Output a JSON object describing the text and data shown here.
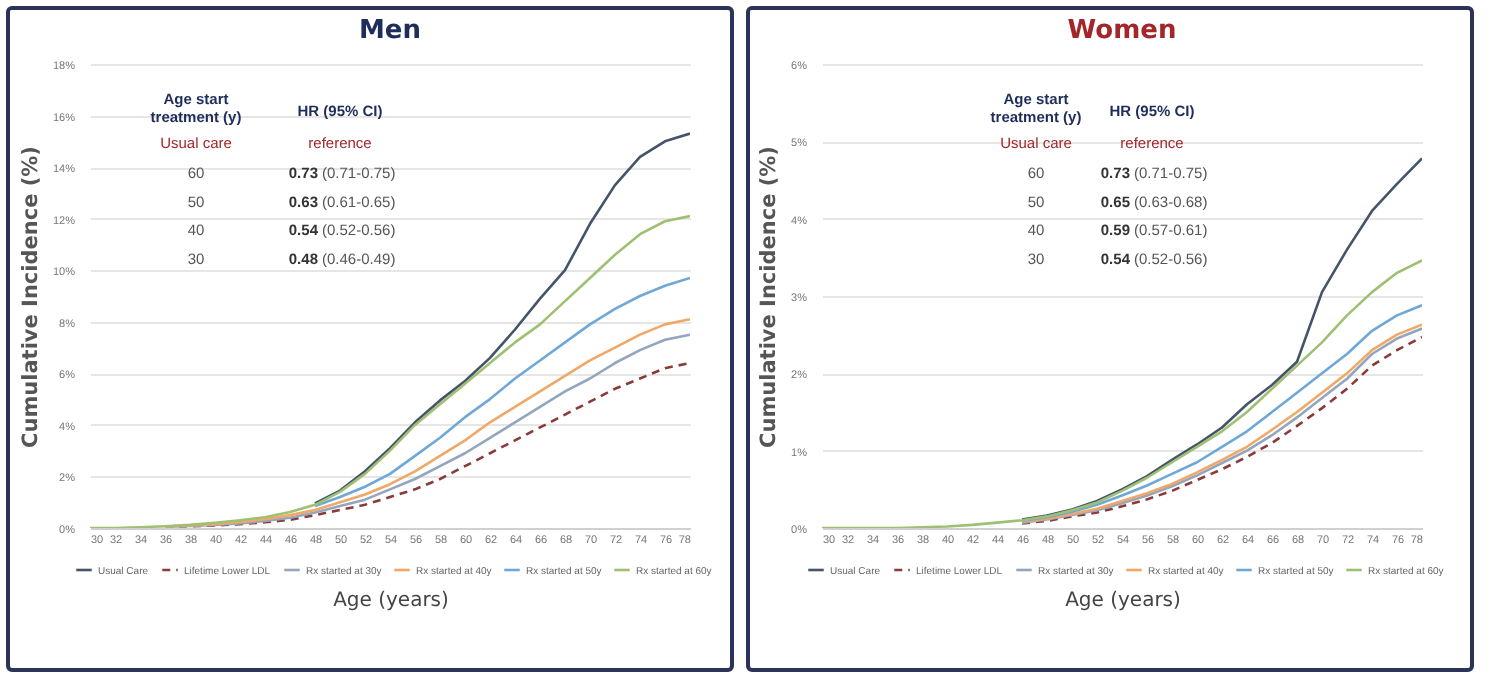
{
  "chart_data": [
    {
      "type": "line",
      "title": "Men",
      "xlabel": "Age (years)",
      "ylabel": "Cumulative Incidence (%)",
      "x": [
        30,
        32,
        34,
        36,
        38,
        40,
        42,
        44,
        46,
        48,
        50,
        52,
        54,
        56,
        58,
        60,
        62,
        64,
        66,
        68,
        70,
        72,
        74,
        76,
        78
      ],
      "series": [
        {
          "name": "Usual Care",
          "color": "#44546a",
          "values": [
            null,
            null,
            null,
            null,
            null,
            null,
            null,
            null,
            null,
            0.95,
            1.45,
            2.2,
            3.1,
            4.1,
            4.95,
            5.7,
            6.6,
            7.7,
            8.9,
            10.0,
            11.8,
            13.3,
            14.4,
            15.0,
            15.3
          ]
        },
        {
          "name": "Lifetime Lower LDL",
          "color": "#8b3a3a",
          "line_style": "dashed",
          "values": [
            null,
            null,
            null,
            0.04,
            0.07,
            0.1,
            0.15,
            0.22,
            0.32,
            0.5,
            0.7,
            0.9,
            1.2,
            1.5,
            1.9,
            2.4,
            2.9,
            3.4,
            3.9,
            4.4,
            4.9,
            5.4,
            5.8,
            6.2,
            6.4
          ]
        },
        {
          "name": "Rx started at 30y",
          "color": "#93a6be",
          "values": [
            null,
            null,
            null,
            0.05,
            0.08,
            0.12,
            0.18,
            0.27,
            0.4,
            0.6,
            0.85,
            1.1,
            1.5,
            1.9,
            2.4,
            2.9,
            3.5,
            4.1,
            4.7,
            5.3,
            5.8,
            6.4,
            6.9,
            7.3,
            7.5
          ]
        },
        {
          "name": "Rx started at 40y",
          "color": "#f0a868",
          "values": [
            null,
            null,
            null,
            0.06,
            0.1,
            0.15,
            0.23,
            0.34,
            0.5,
            0.7,
            1.0,
            1.3,
            1.7,
            2.2,
            2.8,
            3.4,
            4.1,
            4.7,
            5.3,
            5.9,
            6.5,
            7.0,
            7.5,
            7.9,
            8.1
          ]
        },
        {
          "name": "Rx started at 50y",
          "color": "#6fa8d6",
          "values": [
            null,
            null,
            null,
            null,
            null,
            null,
            null,
            null,
            null,
            0.85,
            1.2,
            1.6,
            2.1,
            2.8,
            3.5,
            4.3,
            5.0,
            5.8,
            6.5,
            7.2,
            7.9,
            8.5,
            9.0,
            9.4,
            9.7
          ]
        },
        {
          "name": "Rx started at 60y",
          "color": "#9fc072",
          "values": [
            0,
            0,
            0.03,
            0.07,
            0.12,
            0.2,
            0.3,
            0.42,
            0.62,
            0.9,
            1.4,
            2.1,
            3.0,
            4.0,
            4.8,
            5.6,
            6.4,
            7.2,
            7.9,
            8.8,
            9.7,
            10.6,
            11.4,
            11.9,
            12.1
          ]
        }
      ],
      "xlim": [
        30,
        78
      ],
      "xticks": [
        30,
        32,
        34,
        36,
        38,
        40,
        42,
        44,
        46,
        48,
        50,
        52,
        54,
        56,
        58,
        60,
        62,
        64,
        66,
        68,
        70,
        72,
        74,
        76,
        78
      ],
      "ylim": [
        0,
        18
      ],
      "yticks": [
        {
          "value": 0,
          "label": "0%"
        },
        {
          "value": 2,
          "label": "2%"
        },
        {
          "value": 4,
          "label": "4%"
        },
        {
          "value": 6,
          "label": "6%"
        },
        {
          "value": 8,
          "label": "8%"
        },
        {
          "value": 10,
          "label": "10%"
        },
        {
          "value": 12,
          "label": "12%"
        },
        {
          "value": 14,
          "label": "14%"
        },
        {
          "value": 16,
          "label": "16%"
        },
        {
          "value": 18,
          "label": "18%"
        }
      ],
      "grid": "y",
      "legend": "bottom",
      "annotations": [
        "Age start treatment (y)",
        "HR (95% CI)",
        "Usual care",
        "reference",
        "60",
        "0.73",
        "(0.71-0.75)",
        "50",
        "0.63",
        "(0.61-0.65)",
        "40",
        "0.54",
        "(0.52-0.56)",
        "30",
        "0.48",
        "(0.46-0.49)"
      ]
    },
    {
      "type": "line",
      "title": "Women",
      "xlabel": "Age (years)",
      "ylabel": "Cumulative Incidence (%)",
      "x": [
        30,
        32,
        34,
        36,
        38,
        40,
        42,
        44,
        46,
        48,
        50,
        52,
        54,
        56,
        58,
        60,
        62,
        64,
        66,
        68,
        70,
        72,
        74,
        76,
        78
      ],
      "series": [
        {
          "name": "Usual Care",
          "color": "#44546a",
          "values": [
            null,
            null,
            null,
            null,
            null,
            null,
            null,
            null,
            0.11,
            0.16,
            0.24,
            0.35,
            0.5,
            0.67,
            0.88,
            1.08,
            1.3,
            1.6,
            1.85,
            2.15,
            3.05,
            3.6,
            4.1,
            4.45,
            4.78
          ]
        },
        {
          "name": "Lifetime Lower LDL",
          "color": "#8b3a3a",
          "line_style": "dashed",
          "values": [
            null,
            null,
            null,
            null,
            null,
            null,
            null,
            null,
            0.06,
            0.09,
            0.15,
            0.2,
            0.28,
            0.37,
            0.48,
            0.62,
            0.76,
            0.92,
            1.1,
            1.32,
            1.55,
            1.8,
            2.1,
            2.3,
            2.47
          ]
        },
        {
          "name": "Rx started at 30y",
          "color": "#93a6be",
          "values": [
            null,
            null,
            null,
            null,
            null,
            null,
            null,
            null,
            0.07,
            0.11,
            0.17,
            0.23,
            0.32,
            0.42,
            0.54,
            0.68,
            0.84,
            1.0,
            1.2,
            1.43,
            1.68,
            1.93,
            2.25,
            2.45,
            2.58
          ]
        },
        {
          "name": "Rx started at 40y",
          "color": "#f0a868",
          "values": [
            null,
            null,
            null,
            null,
            null,
            null,
            null,
            null,
            0.08,
            0.12,
            0.18,
            0.25,
            0.35,
            0.45,
            0.57,
            0.72,
            0.88,
            1.05,
            1.27,
            1.5,
            1.75,
            2.0,
            2.3,
            2.5,
            2.63
          ]
        },
        {
          "name": "Rx started at 50y",
          "color": "#6fa8d6",
          "values": [
            null,
            null,
            null,
            null,
            null,
            null,
            null,
            null,
            0.09,
            0.14,
            0.21,
            0.3,
            0.42,
            0.55,
            0.7,
            0.85,
            1.05,
            1.25,
            1.5,
            1.75,
            2.0,
            2.25,
            2.55,
            2.75,
            2.88
          ]
        },
        {
          "name": "Rx started at 60y",
          "color": "#9fc072",
          "values": [
            0,
            0,
            0,
            0,
            0.01,
            0.02,
            0.04,
            0.07,
            0.1,
            0.15,
            0.23,
            0.33,
            0.48,
            0.65,
            0.85,
            1.05,
            1.25,
            1.5,
            1.8,
            2.1,
            2.4,
            2.75,
            3.05,
            3.3,
            3.46
          ]
        }
      ],
      "xlim": [
        30,
        78
      ],
      "xticks": [
        30,
        32,
        34,
        36,
        38,
        40,
        42,
        44,
        46,
        48,
        50,
        52,
        54,
        56,
        58,
        60,
        62,
        64,
        66,
        68,
        70,
        72,
        74,
        76,
        78
      ],
      "ylim": [
        0,
        6
      ],
      "yticks": [
        {
          "value": 0,
          "label": "0%"
        },
        {
          "value": 1,
          "label": "1%"
        },
        {
          "value": 2,
          "label": "2%"
        },
        {
          "value": 3,
          "label": "3%"
        },
        {
          "value": 4,
          "label": "4%"
        },
        {
          "value": 5,
          "label": "5%"
        },
        {
          "value": 6,
          "label": "6%"
        }
      ],
      "grid": "y",
      "legend": "bottom",
      "annotations": [
        "Age start treatment (y)",
        "HR (95% CI)",
        "Usual care",
        "reference",
        "60",
        "0.73",
        "(0.71-0.75)",
        "50",
        "0.65",
        "(0.63-0.68)",
        "40",
        "0.59",
        "(0.57-0.61)",
        "30",
        "0.54",
        "(0.52-0.56)"
      ]
    }
  ]
}
